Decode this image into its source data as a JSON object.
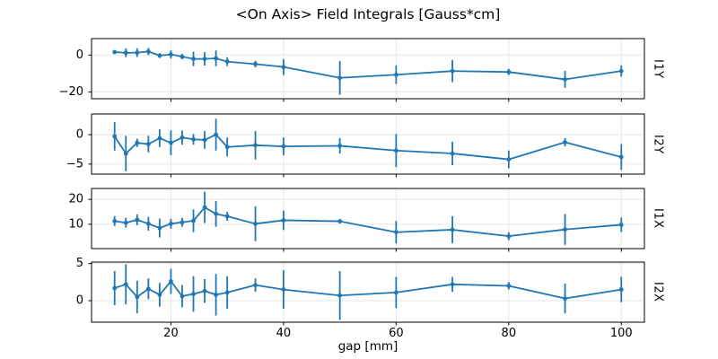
{
  "figure": {
    "title": "<On Axis> Field Integrals [Gauss*cm]",
    "xlabel": "gap [mm]"
  },
  "chart_data": {
    "type": "line",
    "title": "<On Axis> Field Integrals [Gauss*cm]",
    "xlabel": "gap [mm]",
    "legend": "none",
    "grid": true,
    "error_bars": true,
    "marker": "point",
    "line_color": "#1f77b4",
    "grid_color": "#e6e6e6",
    "frame_color": "#000000",
    "x": [
      10,
      12,
      14,
      16,
      18,
      20,
      22,
      24,
      26,
      28,
      30,
      35,
      40,
      50,
      60,
      70,
      80,
      90,
      100
    ],
    "xticks": [
      20,
      40,
      60,
      80,
      100
    ],
    "xlim": [
      5.9,
      104.1
    ],
    "subplots": [
      {
        "label": "I1Y",
        "ylim": [
          -23.7,
          8.9
        ],
        "yticks": [
          0,
          -20
        ],
        "values": [
          1.6,
          1.2,
          1.3,
          1.9,
          -0.3,
          0.3,
          -0.9,
          -2.1,
          -2.1,
          -1.8,
          -3.6,
          -4.9,
          -6.5,
          -12.4,
          -10.7,
          -8.7,
          -9.2,
          -13.2,
          -8.7
        ],
        "errors": [
          1.0,
          2.4,
          2.4,
          1.9,
          1.3,
          2.2,
          1.5,
          3.9,
          3.6,
          4.3,
          2.4,
          1.8,
          4.3,
          9.1,
          5.0,
          6.0,
          1.7,
          4.6,
          3.0
        ]
      },
      {
        "label": "I2Y",
        "ylim": [
          -6.7,
          3.5
        ],
        "yticks": [
          0,
          -5
        ],
        "values": [
          -0.3,
          -3.2,
          -1.4,
          -1.6,
          -0.6,
          -1.4,
          -0.5,
          -0.8,
          -0.9,
          0.0,
          -2.1,
          -1.8,
          -2.0,
          -1.9,
          -2.7,
          -3.2,
          -4.2,
          -1.3,
          -3.8
        ],
        "errors": [
          2.4,
          3.0,
          0.7,
          1.4,
          1.5,
          2.1,
          1.2,
          0.9,
          1.5,
          2.7,
          1.6,
          2.4,
          1.5,
          1.3,
          2.8,
          2.0,
          1.5,
          0.7,
          2.2
        ]
      },
      {
        "label": "I1X",
        "ylim": [
          0.2,
          24.4
        ],
        "yticks": [
          10,
          20
        ],
        "values": [
          11.3,
          10.6,
          11.8,
          10.2,
          8.5,
          10.2,
          10.8,
          11.4,
          16.8,
          14.2,
          13.2,
          10.2,
          11.6,
          11.2,
          6.8,
          7.8,
          5.2,
          7.9,
          9.8
        ],
        "errors": [
          2.0,
          2.0,
          2.2,
          2.8,
          3.8,
          2.0,
          1.8,
          4.6,
          6.3,
          5.2,
          1.8,
          7.0,
          3.9,
          0.9,
          4.5,
          5.4,
          1.6,
          6.2,
          2.9
        ]
      },
      {
        "label": "I2X",
        "ylim": [
          -2.9,
          5.2
        ],
        "yticks": [
          0,
          5
        ],
        "values": [
          1.7,
          2.2,
          0.5,
          1.6,
          0.8,
          2.6,
          0.6,
          0.9,
          1.3,
          0.8,
          1.1,
          2.1,
          1.5,
          0.7,
          1.1,
          2.2,
          2.0,
          0.3,
          1.5
        ],
        "errors": [
          2.3,
          2.7,
          2.2,
          1.4,
          1.6,
          1.7,
          1.5,
          2.4,
          1.6,
          2.8,
          2.2,
          0.9,
          2.6,
          3.3,
          2.1,
          1.0,
          0.5,
          2.0,
          1.7
        ]
      }
    ]
  }
}
